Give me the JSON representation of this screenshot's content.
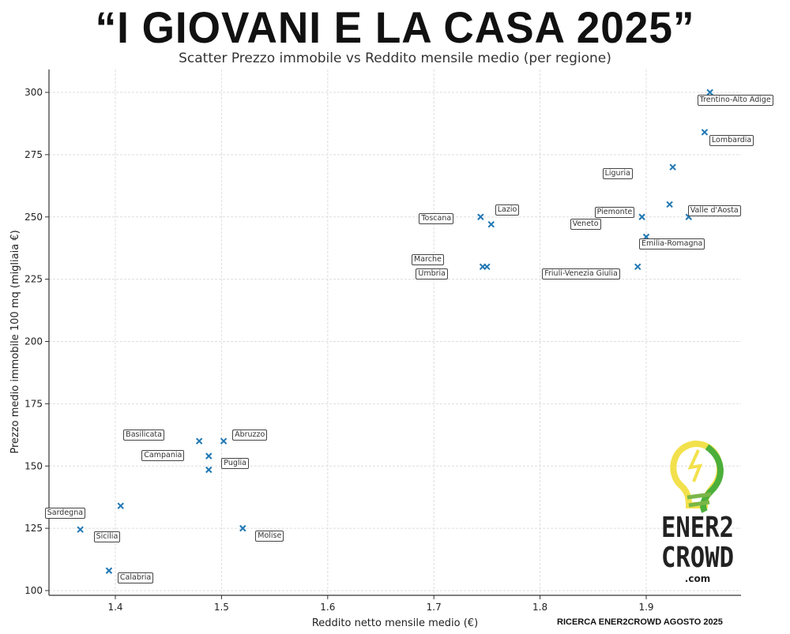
{
  "header": {
    "title": "“I GIOVANI E LA CASA 2025”",
    "subtitle": "Scatter Prezzo immobile vs Reddito mensile medio (per regione)"
  },
  "footer": {
    "credit": "RICERCA ENER2CROWD AGOSTO 2025"
  },
  "logo": {
    "text_line1": "ENER2",
    "text_line2": "CROWD",
    "suffix": ".com",
    "colors": [
      "#f2e14c",
      "#7ab648",
      "#3a9a3a"
    ]
  },
  "chart_data": {
    "type": "scatter",
    "title": "Scatter Prezzo immobile vs Reddito mensile medio (per regione)",
    "xlabel": "Reddito netto mensile medio (€)",
    "ylabel": "Prezzo medio immobile 100 mq (migliaia €)",
    "xlim": [
      1.34,
      1.99
    ],
    "ylim": [
      98,
      310
    ],
    "xticks": [
      1.4,
      1.5,
      1.6,
      1.7,
      1.8,
      1.9
    ],
    "yticks": [
      100,
      125,
      150,
      175,
      200,
      225,
      250,
      275,
      300
    ],
    "grid": true,
    "marker": "x",
    "color": "#1f77b4",
    "points": [
      {
        "label": "Trentino-Alto Adige",
        "x": 1.96,
        "y": 300
      },
      {
        "label": "Lombardia",
        "x": 1.955,
        "y": 284
      },
      {
        "label": "Liguria",
        "x": 1.925,
        "y": 270
      },
      {
        "label": "Valle d'Aosta",
        "x": 1.94,
        "y": 250
      },
      {
        "label": "Piemonte",
        "x": 1.896,
        "y": 250
      },
      {
        "label": "Veneto",
        "x": 1.922,
        "y": 255
      },
      {
        "label": "Emilia-Romagna",
        "x": 1.9,
        "y": 242
      },
      {
        "label": "Friuli-Venezia Giulia",
        "x": 1.892,
        "y": 230
      },
      {
        "label": "Toscana",
        "x": 1.744,
        "y": 250
      },
      {
        "label": "Lazio",
        "x": 1.754,
        "y": 247
      },
      {
        "label": "Marche",
        "x": 1.746,
        "y": 230
      },
      {
        "label": "Umbria",
        "x": 1.75,
        "y": 230
      },
      {
        "label": "Basilicata",
        "x": 1.479,
        "y": 160
      },
      {
        "label": "Abruzzo",
        "x": 1.502,
        "y": 160
      },
      {
        "label": "Campania",
        "x": 1.488,
        "y": 154
      },
      {
        "label": "Puglia",
        "x": 1.488,
        "y": 148.5
      },
      {
        "label": "Sardegna",
        "x": 1.405,
        "y": 134
      },
      {
        "label": "Sicilia",
        "x": 1.367,
        "y": 124.5
      },
      {
        "label": "Calabria",
        "x": 1.394,
        "y": 108
      },
      {
        "label": "Molise",
        "x": 1.52,
        "y": 125
      }
    ]
  }
}
